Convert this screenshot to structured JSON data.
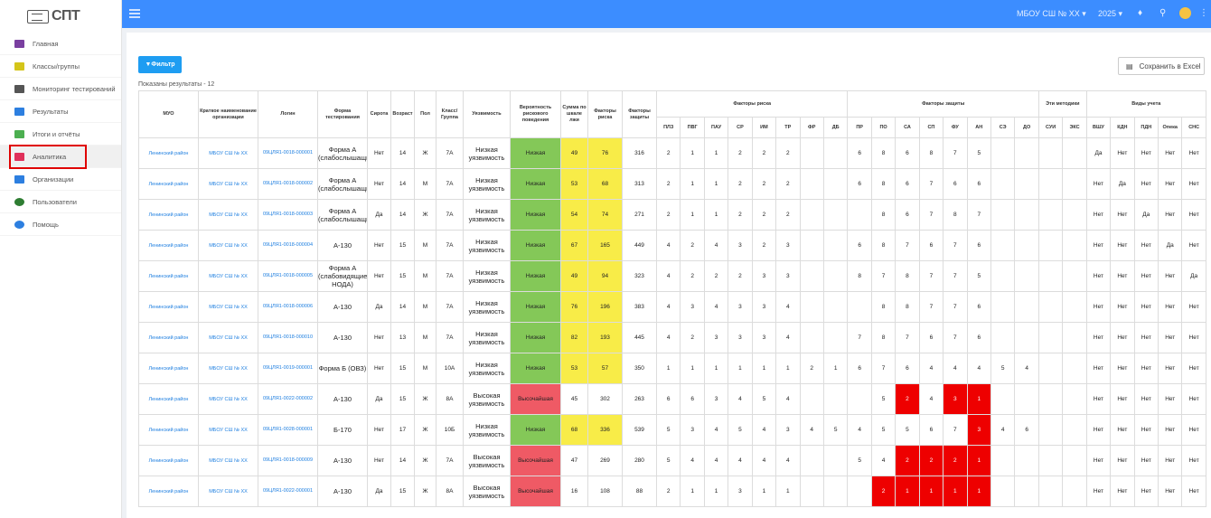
{
  "logo": {
    "text": "СПТ"
  },
  "topbar": {
    "school": "МБОУ СШ № XX",
    "school_caret": "▾",
    "year": "2025",
    "year_caret": "▾"
  },
  "nav": [
    {
      "label": "Главная",
      "icon": "home-icon",
      "color": "#7a3fa0"
    },
    {
      "label": "Классы/группы",
      "icon": "graduation-cap-icon",
      "color": "#d4c51a"
    },
    {
      "label": "Мониторинг тестирований",
      "icon": "laptop-icon",
      "color": "#555555"
    },
    {
      "label": "Результаты",
      "icon": "document-icon",
      "color": "#2d7fe0"
    },
    {
      "label": "Итоги и отчёты",
      "icon": "report-icon",
      "color": "#4caf50"
    },
    {
      "label": "Аналитика",
      "icon": "analytics-file-icon",
      "color": "#e0305a"
    },
    {
      "label": "Организации",
      "icon": "briefcase-icon",
      "color": "#2d7fe0"
    },
    {
      "label": "Пользователи",
      "icon": "user-icon",
      "color": "#2e7d32"
    },
    {
      "label": "Помощь",
      "icon": "help-icon",
      "color": "#2d7fe0"
    }
  ],
  "toolbar": {
    "filter_label": "Фильтр",
    "save_label": "Сохранить в Excel"
  },
  "shown_text": "Показаны результаты - 12",
  "table": {
    "headers": {
      "muo": "МУО",
      "org": "Краткое наименование организации",
      "login": "Логин",
      "form": "Форма тестирования",
      "orphan": "Сирота",
      "age": "Возраст",
      "sex": "Пол",
      "class": "Класс/ Группа",
      "vulnerability": "Уязвимость",
      "probability": "Вероятность рискового поведения",
      "sum": "Сумма по шкале лжи",
      "risk_factors": "Факторы риска",
      "protection_factors": "Факторы защиты",
      "risk_group": "Факторы риска",
      "protection_group": "Факторы защиты",
      "methods_group": "Эти методики",
      "registration_group": "Виды учета"
    },
    "risk_cols": [
      "ПЛЗ",
      "ПВГ",
      "ПАУ",
      "СР",
      "ИМ",
      "ТР",
      "ФР",
      "ДБ"
    ],
    "protection_cols": [
      "ПР",
      "ПО",
      "СА",
      "СП",
      "ФУ",
      "АН",
      "СЭ",
      "ДО"
    ],
    "method_cols": [
      "СУИ",
      "ЭКС"
    ],
    "registration_cols": [
      "ВШУ",
      "КДН",
      "ПДН",
      "Опека",
      "СНС"
    ],
    "rows": [
      {
        "muo": "Ленинский район",
        "org": "МБОУ СШ № XX",
        "login": "09ЦЛЯ1-0018-000001",
        "form": "Форма А (слабослышащие)",
        "orphan": "Нет",
        "age": "14",
        "sex": "Ж",
        "cls": "7А",
        "vul": "Низкая уязвимость",
        "prob": "Низкая",
        "sum": "49",
        "rf": "76",
        "pf": "316",
        "risk": [
          "2",
          "1",
          "1",
          "2",
          "2",
          "2",
          "",
          ""
        ],
        "prot": [
          "6",
          "8",
          "6",
          "8",
          "7",
          "5",
          "",
          ""
        ],
        "meth": [
          "",
          ""
        ],
        "reg": [
          "Да",
          "Нет",
          "Нет",
          "Нет",
          "Нет"
        ]
      },
      {
        "muo": "Ленинский район",
        "org": "МБОУ СШ № XX",
        "login": "09ЦЛЯ1-0018-000002",
        "form": "Форма А (слабослышащие)",
        "orphan": "Нет",
        "age": "14",
        "sex": "М",
        "cls": "7А",
        "vul": "Низкая уязвимость",
        "prob": "Низкая",
        "sum": "53",
        "rf": "68",
        "pf": "313",
        "risk": [
          "2",
          "1",
          "1",
          "2",
          "2",
          "2",
          "",
          ""
        ],
        "prot": [
          "6",
          "8",
          "6",
          "7",
          "6",
          "6",
          "",
          ""
        ],
        "meth": [
          "",
          ""
        ],
        "reg": [
          "Нет",
          "Да",
          "Нет",
          "Нет",
          "Нет"
        ]
      },
      {
        "muo": "Ленинский район",
        "org": "МБОУ СШ № XX",
        "login": "09ЦЛЯ1-0018-000003",
        "form": "Форма А (слабослышащие)",
        "orphan": "Да",
        "age": "14",
        "sex": "Ж",
        "cls": "7А",
        "vul": "Низкая уязвимость",
        "prob": "Низкая",
        "sum": "54",
        "rf": "74",
        "pf": "271",
        "risk": [
          "2",
          "1",
          "1",
          "2",
          "2",
          "2",
          "",
          ""
        ],
        "prot": [
          "",
          "8",
          "6",
          "7",
          "8",
          "7",
          "",
          ""
        ],
        "meth": [
          "",
          ""
        ],
        "reg": [
          "Нет",
          "Нет",
          "Да",
          "Нет",
          "Нет"
        ]
      },
      {
        "muo": "Ленинский район",
        "org": "МБОУ СШ № XX",
        "login": "09ЦЛЯ1-0018-000004",
        "form": "А-130",
        "orphan": "Нет",
        "age": "15",
        "sex": "М",
        "cls": "7А",
        "vul": "Низкая уязвимость",
        "prob": "Низкая",
        "sum": "67",
        "rf": "165",
        "pf": "449",
        "risk": [
          "4",
          "2",
          "4",
          "3",
          "2",
          "3",
          "",
          ""
        ],
        "prot": [
          "6",
          "8",
          "7",
          "6",
          "7",
          "6",
          "",
          ""
        ],
        "meth": [
          "",
          ""
        ],
        "reg": [
          "Нет",
          "Нет",
          "Нет",
          "Да",
          "Нет"
        ]
      },
      {
        "muo": "Ленинский район",
        "org": "МБОУ СШ № XX",
        "login": "09ЦЛЯ1-0018-000005",
        "form": "Форма А (слабовидящие, НОДА)",
        "orphan": "Нет",
        "age": "15",
        "sex": "М",
        "cls": "7А",
        "vul": "Низкая уязвимость",
        "prob": "Низкая",
        "sum": "49",
        "rf": "94",
        "pf": "323",
        "risk": [
          "4",
          "2",
          "2",
          "2",
          "3",
          "3",
          "",
          ""
        ],
        "prot": [
          "8",
          "7",
          "8",
          "7",
          "7",
          "5",
          "",
          ""
        ],
        "meth": [
          "",
          ""
        ],
        "reg": [
          "Нет",
          "Нет",
          "Нет",
          "Нет",
          "Да"
        ]
      },
      {
        "muo": "Ленинский район",
        "org": "МБОУ СШ № XX",
        "login": "09ЦЛЯ1-0018-000006",
        "form": "А-130",
        "orphan": "Да",
        "age": "14",
        "sex": "М",
        "cls": "7А",
        "vul": "Низкая уязвимость",
        "prob": "Низкая",
        "sum": "76",
        "rf": "196",
        "pf": "383",
        "risk": [
          "4",
          "3",
          "4",
          "3",
          "3",
          "4",
          "",
          ""
        ],
        "prot": [
          "",
          "8",
          "8",
          "7",
          "7",
          "6",
          "",
          ""
        ],
        "meth": [
          "",
          ""
        ],
        "reg": [
          "Нет",
          "Нет",
          "Нет",
          "Нет",
          "Нет"
        ]
      },
      {
        "muo": "Ленинский район",
        "org": "МБОУ СШ № XX",
        "login": "09ЦЛЯ1-0018-000010",
        "form": "А-130",
        "orphan": "Нет",
        "age": "13",
        "sex": "М",
        "cls": "7А",
        "vul": "Низкая уязвимость",
        "prob": "Низкая",
        "sum": "82",
        "rf": "193",
        "pf": "445",
        "risk": [
          "4",
          "2",
          "3",
          "3",
          "3",
          "4",
          "",
          ""
        ],
        "prot": [
          "7",
          "8",
          "7",
          "6",
          "7",
          "6",
          "",
          ""
        ],
        "meth": [
          "",
          ""
        ],
        "reg": [
          "Нет",
          "Нет",
          "Нет",
          "Нет",
          "Нет"
        ]
      },
      {
        "muo": "Ленинский район",
        "org": "МБОУ СШ № XX",
        "login": "09ЦЛЯ1-0019-000001",
        "form": "Форма Б (ОВЗ)",
        "orphan": "Нет",
        "age": "15",
        "sex": "М",
        "cls": "10А",
        "vul": "Низкая уязвимость",
        "prob": "Низкая",
        "sum": "53",
        "rf": "57",
        "pf": "350",
        "risk": [
          "1",
          "1",
          "1",
          "1",
          "1",
          "1",
          "2",
          "1"
        ],
        "prot": [
          "6",
          "7",
          "6",
          "4",
          "4",
          "4",
          "5",
          "4"
        ],
        "meth": [
          "",
          ""
        ],
        "reg": [
          "Нет",
          "Нет",
          "Нет",
          "Нет",
          "Нет"
        ]
      },
      {
        "muo": "Ленинский район",
        "org": "МБОУ СШ № XX",
        "login": "09ЦЛЯ1-0022-000002",
        "form": "А-130",
        "orphan": "Да",
        "age": "15",
        "sex": "Ж",
        "cls": "8А",
        "vul": "Высокая уязвимость",
        "prob": "Высочайшая",
        "sum": "45",
        "rf": "302",
        "pf": "263",
        "risk": [
          "6",
          "6",
          "3",
          "4",
          "5",
          "4",
          "",
          ""
        ],
        "prot": [
          "",
          "5",
          "2",
          "4",
          "3",
          "1",
          "",
          ""
        ],
        "meth": [
          "",
          ""
        ],
        "reg": [
          "Нет",
          "Нет",
          "Нет",
          "Нет",
          "Нет"
        ]
      },
      {
        "muo": "Ленинский район",
        "org": "МБОУ СШ № XX",
        "login": "09ЦЛЯ1-0028-000001",
        "form": "Б-170",
        "orphan": "Нет",
        "age": "17",
        "sex": "Ж",
        "cls": "10Б",
        "vul": "Низкая уязвимость",
        "prob": "Низкая",
        "sum": "68",
        "rf": "336",
        "pf": "539",
        "risk": [
          "5",
          "3",
          "4",
          "5",
          "4",
          "3",
          "4",
          "5"
        ],
        "prot": [
          "4",
          "5",
          "5",
          "6",
          "7",
          "3",
          "4",
          "6"
        ],
        "meth": [
          "",
          ""
        ],
        "reg": [
          "Нет",
          "Нет",
          "Нет",
          "Нет",
          "Нет"
        ]
      },
      {
        "muo": "Ленинский район",
        "org": "МБОУ СШ № XX",
        "login": "09ЦЛЯ1-0018-000009",
        "form": "А-130",
        "orphan": "Нет",
        "age": "14",
        "sex": "Ж",
        "cls": "7А",
        "vul": "Высокая уязвимость",
        "prob": "Высочайшая",
        "sum": "47",
        "rf": "269",
        "pf": "280",
        "risk": [
          "5",
          "4",
          "4",
          "4",
          "4",
          "4",
          "",
          ""
        ],
        "prot": [
          "5",
          "4",
          "2",
          "2",
          "2",
          "1",
          "",
          ""
        ],
        "meth": [
          "",
          ""
        ],
        "reg": [
          "Нет",
          "Нет",
          "Нет",
          "Нет",
          "Нет"
        ]
      },
      {
        "muo": "Ленинский район",
        "org": "МБОУ СШ № XX",
        "login": "09ЦЛЯ1-0022-000001",
        "form": "А-130",
        "orphan": "Да",
        "age": "15",
        "sex": "Ж",
        "cls": "8А",
        "vul": "Высокая уязвимость",
        "prob": "Высочайшая",
        "sum": "16",
        "rf": "108",
        "pf": "88",
        "risk": [
          "2",
          "1",
          "1",
          "3",
          "1",
          "1",
          "",
          ""
        ],
        "prot": [
          "",
          "2",
          "1",
          "1",
          "1",
          "1",
          "",
          ""
        ],
        "meth": [
          "",
          ""
        ],
        "reg": [
          "Нет",
          "Нет",
          "Нет",
          "Нет",
          "Нет"
        ]
      }
    ]
  },
  "highlight": {
    "rows_red_prot": {
      "8": [
        2,
        4,
        5
      ],
      "9": [
        5
      ],
      "10": [
        2,
        3,
        4,
        5
      ],
      "11": [
        1,
        2,
        3,
        4,
        5
      ]
    }
  },
  "colors": {
    "low": "#84c858",
    "yellow": "#f8ec48",
    "high": "#ef5a65",
    "alert": "#ee0000",
    "accent": "#3c8dff",
    "button": "#1e9df2",
    "nav_highlight": "#e00000"
  }
}
